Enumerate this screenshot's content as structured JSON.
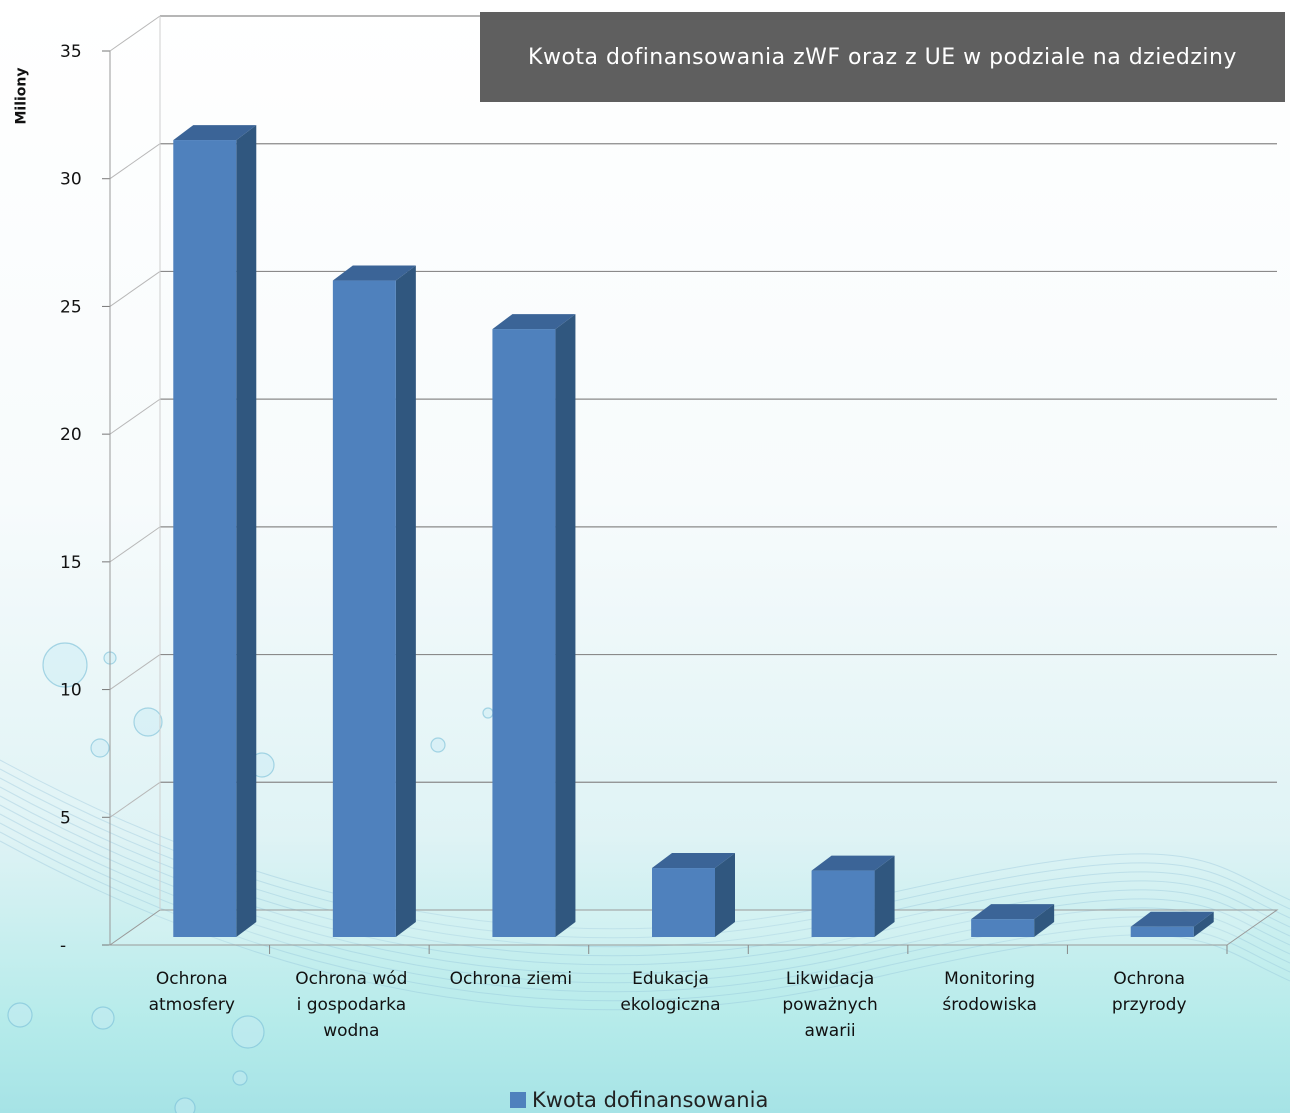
{
  "chart_data": {
    "type": "bar",
    "title": "Kwota dofinansowania zWF oraz z UE  w podziale na dziedziny",
    "ylabel": "Miliony",
    "ylim": [
      0,
      35
    ],
    "yticks": [
      "-",
      "5",
      "10",
      "15",
      "20",
      "25",
      "30",
      "35"
    ],
    "categories": [
      "Ochrona atmosfery",
      "Ochrona wód i gospodarka wodna",
      "Ochrona ziemi",
      "Edukacja ekologiczna",
      "Likwidacja poważnych awarii",
      "Monitoring środowiska",
      "Ochrona przyrody"
    ],
    "category_lines": [
      "Ochrona\natmosfery",
      "Ochrona wód\ni gospodarka\nwodna",
      "Ochrona ziemi",
      "Edukacja\nekologiczna",
      "Likwidacja\npoważnych\nawarii",
      "Monitoring\nśrodowiska",
      "Ochrona\nprzyrody"
    ],
    "series": [
      {
        "name": "Kwota dofinansowania",
        "values": [
          31.2,
          25.7,
          23.8,
          2.7,
          2.6,
          0.7,
          0.4
        ]
      }
    ],
    "grid": true,
    "legend": "bottom",
    "colors": {
      "bar_front": "#4f81bd",
      "bar_side": "#30577f",
      "bar_top": "#3b6497",
      "title_bg": "#5f5f5f"
    }
  }
}
